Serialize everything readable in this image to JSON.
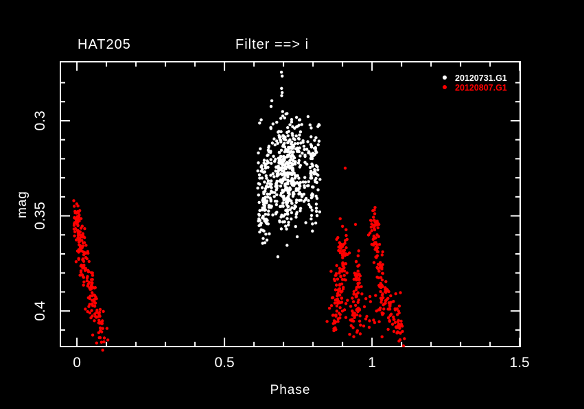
{
  "window": {
    "background": "#000000",
    "foreground": "#ffffff"
  },
  "chart_data": {
    "type": "scatter",
    "title": "HAT205",
    "subtitle": "Filter ==> i",
    "xlabel": "Phase",
    "ylabel": "mag",
    "x_axis": {
      "min": -0.056,
      "max": 1.502,
      "major_ticks": [
        {
          "value": 0,
          "label": "0"
        },
        {
          "value": 0.5,
          "label": "0.5"
        },
        {
          "value": 1,
          "label": "1"
        },
        {
          "value": 1.5,
          "label": "1.5"
        }
      ],
      "minor_tick_step": 0.1,
      "minor_tick_range": [
        0,
        1.5
      ]
    },
    "y_axis": {
      "inverted": true,
      "top": 0.269,
      "bottom": 0.4187,
      "major_ticks": [
        {
          "value": 0.3,
          "label": "0.3"
        },
        {
          "value": 0.35,
          "label": "0.35"
        },
        {
          "value": 0.4,
          "label": "0.4"
        }
      ],
      "minor_tick_step": 0.01,
      "minor_tick_range": [
        0.28,
        0.41
      ]
    },
    "legend": {
      "position": "top-right"
    },
    "series": [
      {
        "name": "20120731.G1",
        "color": "#ffffff",
        "marker": "dot",
        "bands": [
          {
            "type": "cloud",
            "n": 430,
            "cx": 0.715,
            "cy": 0.327,
            "sx": 0.032,
            "sy": 0.0155,
            "clip_phase": [
              0.655,
              0.802
            ],
            "clip_mag": [
              0.2955,
              0.357
            ],
            "streak": 0.0135,
            "streak_jitter": 0.0042
          },
          {
            "type": "cloud",
            "n": 115,
            "cx": 0.634,
            "cy": 0.338,
            "sx": 0.014,
            "sy": 0.0135,
            "clip_phase": [
              0.611,
              0.661
            ],
            "clip_mag": [
              0.306,
              0.3655
            ],
            "streak": 0.0135,
            "streak_jitter": 0.0042
          },
          {
            "type": "cloud",
            "n": 75,
            "cx": 0.8,
            "cy": 0.326,
            "sx": 0.011,
            "sy": 0.0145,
            "clip_phase": [
              0.783,
              0.826
            ],
            "clip_mag": [
              0.2995,
              0.354
            ],
            "streak": 0.0135,
            "streak_jitter": 0.0042
          },
          {
            "type": "points",
            "pts": [
              [
                0.693,
                0.2745
              ],
              [
                0.6955,
                0.2765
              ],
              [
                0.6935,
                0.283
              ],
              [
                0.6955,
                0.2852
              ],
              [
                0.694,
                0.2868
              ],
              [
                0.6605,
                0.2895
              ],
              [
                0.658,
                0.2925
              ],
              [
                0.6245,
                0.2995
              ],
              [
                0.619,
                0.3012
              ],
              [
                0.697,
                0.2952
              ],
              [
                0.681,
                0.3715
              ],
              [
                0.7465,
                0.361
              ],
              [
                0.798,
                0.358
              ],
              [
                0.712,
                0.3655
              ]
            ]
          }
        ]
      },
      {
        "name": "20120807.G1",
        "color": "#ff0000",
        "marker": "dot",
        "bands": [
          {
            "type": "path",
            "n": 200,
            "pow": 1.25,
            "jx": 0.009,
            "jy": 0.0042,
            "path": [
              [
                -0.002,
                0.3485
              ],
              [
                0.008,
                0.358
              ],
              [
                0.018,
                0.3695
              ],
              [
                0.032,
                0.382
              ],
              [
                0.05,
                0.3935
              ],
              [
                0.072,
                0.4025
              ],
              [
                0.088,
                0.4115
              ]
            ]
          },
          {
            "type": "path",
            "n": 120,
            "pow": 1.0,
            "jx": 0.012,
            "jy": 0.005,
            "path": [
              [
                0.905,
                0.3625
              ],
              [
                0.899,
                0.379
              ],
              [
                0.889,
                0.3955
              ],
              [
                0.873,
                0.4055
              ]
            ]
          },
          {
            "type": "path",
            "n": 60,
            "pow": 1.0,
            "jx": 0.007,
            "jy": 0.005,
            "path": [
              [
                0.952,
                0.3745
              ],
              [
                0.9465,
                0.39
              ],
              [
                0.9415,
                0.4075
              ]
            ]
          },
          {
            "type": "path",
            "n": 155,
            "pow": 1.1,
            "jx": 0.009,
            "jy": 0.004,
            "path": [
              [
                1.006,
                0.35
              ],
              [
                1.012,
                0.3625
              ],
              [
                1.022,
                0.3775
              ],
              [
                1.038,
                0.392
              ],
              [
                1.063,
                0.402
              ],
              [
                1.088,
                0.4075
              ],
              [
                1.099,
                0.4125
              ]
            ]
          },
          {
            "type": "cloud",
            "n": 40,
            "cx": 0.975,
            "cy": 0.401,
            "sx": 0.055,
            "sy": 0.0075,
            "clip_phase": [
              0.868,
              1.098
            ],
            "clip_mag": [
              0.386,
              0.4145
            ],
            "streak": 0,
            "streak_jitter": 0
          },
          {
            "type": "points",
            "pts": [
              [
                0.909,
                0.3249
              ],
              [
                0.944,
                0.3545
              ],
              [
                0.9,
                0.3555
              ],
              [
                0.938,
                0.4135
              ],
              [
                0.96,
                0.412
              ]
            ]
          }
        ]
      }
    ]
  }
}
